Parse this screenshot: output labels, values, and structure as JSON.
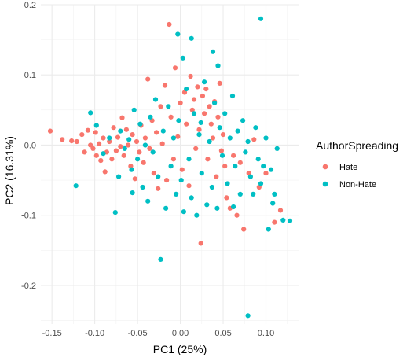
{
  "chart_data": {
    "type": "scatter",
    "xlabel": "PC1 (25%)",
    "ylabel": "PC2 (16.31%)",
    "xlim": [
      -0.163,
      0.139
    ],
    "ylim": [
      -0.255,
      0.2
    ],
    "x_ticks": [
      -0.15,
      -0.1,
      -0.05,
      0.0,
      0.05,
      0.1
    ],
    "x_tick_labels": [
      "-0.15",
      "-0.10",
      "-0.05",
      "0.00",
      "0.05",
      "0.10"
    ],
    "y_ticks": [
      -0.2,
      -0.1,
      0.0,
      0.1,
      0.2
    ],
    "y_tick_labels": [
      "-0.2",
      "-0.1",
      "0.0",
      "0.1",
      "0.2"
    ],
    "grid": true,
    "legend": {
      "title": "AuthorSpreading",
      "position": "right"
    },
    "series": [
      {
        "name": "Hate",
        "color": "#F8766D",
        "points": [
          [
            -0.152,
            0.02
          ],
          [
            -0.138,
            0.008
          ],
          [
            -0.127,
            0.006
          ],
          [
            -0.121,
            0.005
          ],
          [
            -0.115,
            0.015
          ],
          [
            -0.112,
            -0.01
          ],
          [
            -0.108,
            0.021
          ],
          [
            -0.105,
            0.0
          ],
          [
            -0.102,
            -0.005
          ],
          [
            -0.099,
            0.018
          ],
          [
            -0.098,
            -0.015
          ],
          [
            -0.095,
            0.002
          ],
          [
            -0.093,
            -0.022
          ],
          [
            -0.09,
            0.01
          ],
          [
            -0.088,
            -0.038
          ],
          [
            -0.086,
            -0.01
          ],
          [
            -0.083,
            0.005
          ],
          [
            -0.08,
            -0.02
          ],
          [
            -0.078,
            0.025
          ],
          [
            -0.075,
            -0.008
          ],
          [
            -0.073,
            0.011
          ],
          [
            -0.07,
            -0.002
          ],
          [
            -0.068,
            0.039
          ],
          [
            -0.066,
            -0.015
          ],
          [
            -0.063,
            0.022
          ],
          [
            -0.061,
            0.0
          ],
          [
            -0.058,
            -0.03
          ],
          [
            -0.056,
            0.015
          ],
          [
            -0.053,
            -0.048
          ],
          [
            -0.051,
            0.005
          ],
          [
            -0.048,
            -0.01
          ],
          [
            -0.046,
            0.028
          ],
          [
            -0.043,
            -0.025
          ],
          [
            -0.041,
            0.01
          ],
          [
            -0.038,
            0.094
          ],
          [
            -0.036,
            -0.005
          ],
          [
            -0.033,
            0.035
          ],
          [
            -0.031,
            -0.04
          ],
          [
            -0.028,
            0.018
          ],
          [
            -0.026,
            -0.062
          ],
          [
            -0.023,
            0.055
          ],
          [
            -0.021,
            0.002
          ],
          [
            -0.018,
            0.085
          ],
          [
            -0.016,
            -0.05
          ],
          [
            -0.013,
            0.172
          ],
          [
            -0.011,
            0.04
          ],
          [
            -0.008,
            -0.02
          ],
          [
            -0.006,
            0.11
          ],
          [
            -0.003,
            0.012
          ],
          [
            0.0,
            0.06
          ],
          [
            0.002,
            -0.035
          ],
          [
            0.005,
            0.075
          ],
          [
            0.007,
            0.03
          ],
          [
            0.01,
            -0.058
          ],
          [
            0.012,
            0.098
          ],
          [
            0.014,
            0.05
          ],
          [
            0.016,
            0.065
          ],
          [
            0.018,
            -0.005
          ],
          [
            0.02,
            0.083
          ],
          [
            0.022,
            0.022
          ],
          [
            0.024,
            -0.14
          ],
          [
            0.026,
            0.07
          ],
          [
            0.028,
            0.045
          ],
          [
            0.03,
            0.08
          ],
          [
            0.032,
            -0.02
          ],
          [
            0.034,
            0.055
          ],
          [
            0.036,
            0.03
          ],
          [
            0.038,
            0.01
          ],
          [
            0.04,
            0.062
          ],
          [
            0.042,
            -0.045
          ],
          [
            0.044,
            0.04
          ],
          [
            0.046,
            0.088
          ],
          [
            0.048,
            -0.008
          ],
          [
            0.05,
            0.015
          ],
          [
            0.052,
            -0.03
          ],
          [
            0.054,
            -0.075
          ],
          [
            0.058,
            -0.09
          ],
          [
            0.062,
            -0.015
          ],
          [
            0.066,
            -0.1
          ],
          [
            0.07,
            -0.025
          ],
          [
            0.074,
            -0.12
          ],
          [
            0.08,
            -0.04
          ],
          [
            0.086,
            0.008
          ],
          [
            0.092,
            -0.06
          ],
          [
            0.1,
            -0.04
          ],
          [
            0.11,
            -0.11
          ],
          [
            0.117,
            -0.093
          ]
        ]
      },
      {
        "name": "Non-Hate",
        "color": "#00BFC4",
        "points": [
          [
            0.094,
            0.18
          ],
          [
            -0.003,
            0.158
          ],
          [
            0.013,
            0.152
          ],
          [
            0.038,
            0.133
          ],
          [
            0.003,
            0.124
          ],
          [
            0.044,
            0.113
          ],
          [
            -0.122,
            -0.058
          ],
          [
            -0.105,
            0.046
          ],
          [
            -0.09,
            -0.012
          ],
          [
            -0.083,
            0.01
          ],
          [
            -0.076,
            -0.096
          ],
          [
            -0.07,
            0.02
          ],
          [
            -0.065,
            -0.005
          ],
          [
            -0.06,
            0.008
          ],
          [
            -0.057,
            -0.035
          ],
          [
            -0.054,
            0.05
          ],
          [
            -0.05,
            -0.02
          ],
          [
            -0.047,
            0.03
          ],
          [
            -0.044,
            -0.06
          ],
          [
            -0.041,
            0.0
          ],
          [
            -0.038,
            -0.08
          ],
          [
            -0.035,
            0.04
          ],
          [
            -0.032,
            -0.01
          ],
          [
            -0.029,
            0.065
          ],
          [
            -0.026,
            -0.045
          ],
          [
            -0.023,
            -0.163
          ],
          [
            -0.02,
            0.02
          ],
          [
            -0.017,
            -0.09
          ],
          [
            -0.014,
            0.055
          ],
          [
            -0.011,
            -0.03
          ],
          [
            -0.008,
            0.01
          ],
          [
            -0.005,
            -0.07
          ],
          [
            -0.002,
            0.035
          ],
          [
            0.001,
            -0.05
          ],
          [
            0.004,
            -0.095
          ],
          [
            0.007,
            0.08
          ],
          [
            0.01,
            -0.02
          ],
          [
            0.013,
            -0.075
          ],
          [
            0.016,
            0.045
          ],
          [
            0.019,
            -0.1
          ],
          [
            0.022,
            0.015
          ],
          [
            0.025,
            -0.04
          ],
          [
            0.028,
            0.09
          ],
          [
            0.031,
            -0.085
          ],
          [
            0.034,
            0.005
          ],
          [
            0.037,
            -0.06
          ],
          [
            0.04,
            0.06
          ],
          [
            0.043,
            -0.09
          ],
          [
            0.046,
            0.025
          ],
          [
            0.049,
            -0.015
          ],
          [
            0.052,
            0.045
          ],
          [
            0.055,
            -0.055
          ],
          [
            0.058,
            0.01
          ],
          [
            0.061,
            0.07
          ],
          [
            0.064,
            -0.03
          ],
          [
            0.067,
            0.02
          ],
          [
            0.07,
            -0.07
          ],
          [
            0.073,
            0.035
          ],
          [
            0.076,
            -0.01
          ],
          [
            0.079,
            0.005
          ],
          [
            0.082,
            -0.045
          ],
          [
            0.085,
            -0.07
          ],
          [
            0.088,
            0.025
          ],
          [
            0.091,
            -0.02
          ],
          [
            0.094,
            -0.055
          ],
          [
            0.097,
            -0.03
          ],
          [
            0.1,
            0.01
          ],
          [
            0.103,
            -0.12
          ],
          [
            0.106,
            -0.035
          ],
          [
            0.11,
            -0.07
          ],
          [
            0.113,
            -0.005
          ],
          [
            0.12,
            -0.107
          ],
          [
            0.128,
            -0.108
          ],
          [
            0.079,
            -0.243
          ],
          [
            0.108,
            -0.083
          ],
          [
            0.062,
            -0.088
          ],
          [
            -0.098,
            0.028
          ],
          [
            -0.072,
            -0.045
          ],
          [
            -0.056,
            -0.068
          ],
          [
            0.024,
            0.032
          ]
        ]
      }
    ]
  }
}
